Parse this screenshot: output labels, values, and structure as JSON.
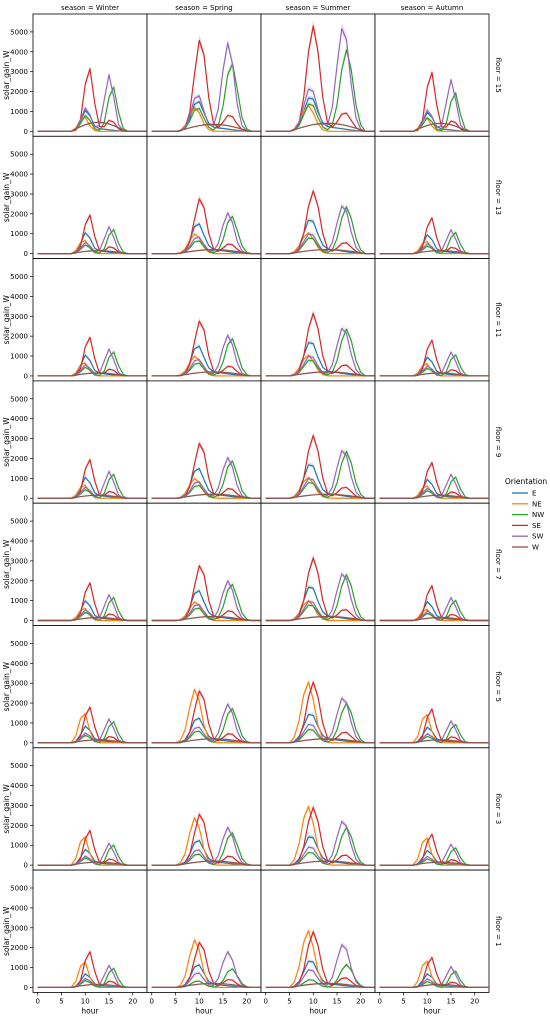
{
  "chart_data": {
    "type": "line",
    "title": "",
    "xlabel": "hour",
    "ylabel": "solar_gain_W",
    "xlim": [
      -1,
      23
    ],
    "ylim": [
      -250,
      5900
    ],
    "x_ticks": [
      0,
      5,
      10,
      15,
      20
    ],
    "y_ticks": [
      0,
      1000,
      2000,
      3000,
      4000,
      5000
    ],
    "col_facet_var": "season",
    "row_facet_var": "floor",
    "col_titles": [
      "season = Winter",
      "season = Spring",
      "season = Summer",
      "season = Autumn"
    ],
    "row_titles": [
      "floor = 15",
      "floor = 13",
      "floor = 11",
      "floor = 9",
      "floor = 7",
      "floor = 5",
      "floor = 3",
      "floor = 1"
    ],
    "legend": {
      "title": "Orientation",
      "position": "right",
      "entries": [
        "E",
        "NE",
        "NW",
        "SE",
        "SW",
        "W"
      ]
    },
    "hours": [
      0,
      1,
      2,
      3,
      4,
      5,
      6,
      7,
      8,
      9,
      10,
      11,
      12,
      13,
      14,
      15,
      16,
      17,
      18,
      19,
      20,
      21,
      22,
      23
    ],
    "colors": {
      "E": "#1f77b4",
      "NE": "#ff7f0e",
      "NW": "#2ca02c",
      "SE": "#d62728",
      "SW": "#9467bd",
      "W": "#8c564b"
    },
    "season_params": {
      "Winter": {
        "start": 7,
        "end": 18.5
      },
      "Spring": {
        "start": 5.5,
        "end": 20.5
      },
      "Summer": {
        "start": 5,
        "end": 21
      },
      "Autumn": {
        "start": 7,
        "end": 18.5
      }
    },
    "peaks": {
      "floor = 15": {
        "Winter": {
          "E": 1000,
          "NE": 750,
          "NW": 2300,
          "SE": 3250,
          "SW": 2850,
          "W": 450
        },
        "Spring": {
          "E": 1450,
          "NE": 1200,
          "NW": 3450,
          "SE": 4650,
          "SW": 4450,
          "W": 350
        },
        "Summer": {
          "E": 1650,
          "NE": 1300,
          "NW": 4100,
          "SE": 5300,
          "SW": 5300,
          "W": 400
        },
        "Autumn": {
          "E": 900,
          "NE": 700,
          "NW": 2000,
          "SE": 3050,
          "SW": 2600,
          "W": 400
        }
      },
      "floor = 13": {
        "Winter": {
          "E": 1000,
          "NE": 700,
          "NW": 1250,
          "SE": 2000,
          "SW": 1350,
          "W": 150
        },
        "Spring": {
          "E": 1450,
          "NE": 1000,
          "NW": 1900,
          "SE": 2800,
          "SW": 2050,
          "W": 200
        },
        "Summer": {
          "E": 1650,
          "NE": 1050,
          "NW": 2350,
          "SE": 3150,
          "SW": 2450,
          "W": 200
        },
        "Autumn": {
          "E": 900,
          "NE": 650,
          "NW": 1100,
          "SE": 1850,
          "SW": 1200,
          "W": 150
        }
      },
      "floor = 11": {
        "Winter": {
          "E": 1000,
          "NE": 700,
          "NW": 1250,
          "SE": 2000,
          "SW": 1350,
          "W": 150
        },
        "Spring": {
          "E": 1450,
          "NE": 1000,
          "NW": 1900,
          "SE": 2800,
          "SW": 2050,
          "W": 200
        },
        "Summer": {
          "E": 1650,
          "NE": 1050,
          "NW": 2350,
          "SE": 3150,
          "SW": 2450,
          "W": 200
        },
        "Autumn": {
          "E": 900,
          "NE": 650,
          "NW": 1100,
          "SE": 1850,
          "SW": 1200,
          "W": 150
        }
      },
      "floor = 9": {
        "Winter": {
          "E": 1000,
          "NE": 700,
          "NW": 1250,
          "SE": 2000,
          "SW": 1350,
          "W": 150
        },
        "Spring": {
          "E": 1450,
          "NE": 1000,
          "NW": 1900,
          "SE": 2800,
          "SW": 2050,
          "W": 200
        },
        "Summer": {
          "E": 1650,
          "NE": 1050,
          "NW": 2350,
          "SE": 3150,
          "SW": 2450,
          "W": 200
        },
        "Autumn": {
          "E": 900,
          "NE": 650,
          "NW": 1100,
          "SE": 1850,
          "SW": 1200,
          "W": 150
        }
      },
      "floor = 7": {
        "Winter": {
          "E": 950,
          "NE": 650,
          "NW": 1200,
          "SE": 1950,
          "SW": 1300,
          "W": 150
        },
        "Spring": {
          "E": 1450,
          "NE": 950,
          "NW": 1850,
          "SE": 2800,
          "SW": 2000,
          "W": 200
        },
        "Summer": {
          "E": 1650,
          "NE": 1000,
          "NW": 2300,
          "SE": 3150,
          "SW": 2400,
          "W": 200
        },
        "Autumn": {
          "E": 900,
          "NE": 600,
          "NW": 1050,
          "SE": 1800,
          "SW": 1150,
          "W": 150
        }
      },
      "floor = 5": {
        "Winter": {
          "E": 800,
          "NE": 1550,
          "NW": 1100,
          "SE": 1850,
          "SW": 1200,
          "W": 150
        },
        "Spring": {
          "E": 1200,
          "NE": 2700,
          "NW": 1750,
          "SE": 2650,
          "SW": 1950,
          "W": 200
        },
        "Summer": {
          "E": 1400,
          "NE": 3050,
          "NW": 2000,
          "SE": 3050,
          "SW": 2300,
          "W": 200
        },
        "Autumn": {
          "E": 750,
          "NE": 1500,
          "NW": 950,
          "SE": 1750,
          "SW": 1100,
          "W": 150
        }
      },
      "floor = 3": {
        "Winter": {
          "E": 750,
          "NE": 1500,
          "NW": 1050,
          "SE": 1800,
          "SW": 1100,
          "W": 150
        },
        "Spring": {
          "E": 1200,
          "NE": 2400,
          "NW": 1650,
          "SE": 2600,
          "SW": 1900,
          "W": 200
        },
        "Summer": {
          "E": 1400,
          "NE": 2950,
          "NW": 1900,
          "SE": 2900,
          "SW": 2250,
          "W": 200
        },
        "Autumn": {
          "E": 700,
          "NE": 1450,
          "NW": 900,
          "SE": 1600,
          "SW": 1050,
          "W": 150
        }
      },
      "floor = 1": {
        "Winter": {
          "E": 650,
          "NE": 1350,
          "NW": 1000,
          "SE": 1850,
          "SW": 1100,
          "W": 150
        },
        "Spring": {
          "E": 1100,
          "NE": 2400,
          "NW": 950,
          "SE": 2300,
          "SW": 1800,
          "W": 200
        },
        "Summer": {
          "E": 1300,
          "NE": 2850,
          "NW": 1150,
          "SE": 2800,
          "SW": 2200,
          "W": 200
        },
        "Autumn": {
          "E": 650,
          "NE": 1400,
          "NW": 850,
          "SE": 1550,
          "SW": 1050,
          "W": 150
        }
      }
    }
  }
}
